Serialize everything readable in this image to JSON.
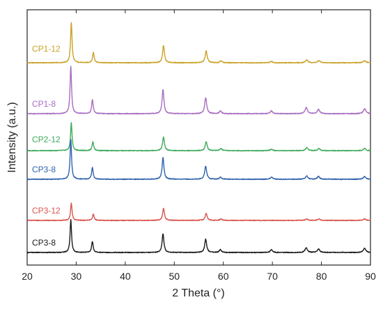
{
  "chart_data": {
    "type": "line",
    "title": "",
    "xlabel": "2 Theta (°)",
    "ylabel": "Intensity (a.u.)",
    "xlim": [
      20,
      90
    ],
    "xticks": [
      20,
      30,
      40,
      50,
      60,
      70,
      80,
      90
    ],
    "y_tick_labels": false,
    "grid": false,
    "legend": "inline labels left of each curve",
    "series": [
      {
        "name": "CP1-12",
        "color": "#c9a227",
        "baseline_rank": 6,
        "peaks": [
          [
            29.0,
            58
          ],
          [
            33.5,
            15
          ],
          [
            47.8,
            25
          ],
          [
            56.5,
            17
          ],
          [
            59.5,
            3
          ],
          [
            69.8,
            2
          ],
          [
            77.0,
            4
          ],
          [
            79.5,
            3
          ],
          [
            88.8,
            3
          ]
        ]
      },
      {
        "name": "CP1-8",
        "color": "#a86cc1",
        "baseline_rank": 5,
        "peaks": [
          [
            28.9,
            68
          ],
          [
            33.3,
            20
          ],
          [
            47.7,
            35
          ],
          [
            56.4,
            23
          ],
          [
            59.4,
            4
          ],
          [
            69.8,
            4
          ],
          [
            76.9,
            9
          ],
          [
            79.4,
            6
          ],
          [
            88.8,
            7
          ]
        ]
      },
      {
        "name": "CP2-12",
        "color": "#3daa5a",
        "baseline_rank": 4,
        "peaks": [
          [
            29.0,
            40
          ],
          [
            33.4,
            13
          ],
          [
            47.8,
            20
          ],
          [
            56.5,
            13
          ],
          [
            59.5,
            3
          ],
          [
            69.8,
            2
          ],
          [
            77.0,
            4
          ],
          [
            79.5,
            3
          ],
          [
            88.8,
            3
          ]
        ]
      },
      {
        "name": "CP3-8",
        "color": "#2f62ad",
        "baseline_rank": 3,
        "peaks": [
          [
            28.9,
            57
          ],
          [
            33.3,
            17
          ],
          [
            47.7,
            31
          ],
          [
            56.4,
            19
          ],
          [
            59.4,
            3
          ],
          [
            69.8,
            3
          ],
          [
            77.0,
            5
          ],
          [
            79.4,
            4
          ],
          [
            88.8,
            4
          ]
        ]
      },
      {
        "name": "CP3-12",
        "color": "#d9534f",
        "baseline_rank": 2,
        "peaks": [
          [
            29.0,
            25
          ],
          [
            33.5,
            9
          ],
          [
            47.8,
            17
          ],
          [
            56.5,
            10
          ],
          [
            59.5,
            2
          ],
          [
            77.0,
            2
          ],
          [
            79.5,
            2
          ],
          [
            88.8,
            2
          ]
        ]
      },
      {
        "name": "CP3-8",
        "color": "#1a1a1a",
        "baseline_rank": 1,
        "peaks": [
          [
            28.9,
            47
          ],
          [
            33.3,
            16
          ],
          [
            47.7,
            27
          ],
          [
            56.4,
            19
          ],
          [
            59.4,
            4
          ],
          [
            69.8,
            4
          ],
          [
            76.9,
            7
          ],
          [
            79.4,
            5
          ],
          [
            88.8,
            6
          ]
        ]
      }
    ]
  }
}
